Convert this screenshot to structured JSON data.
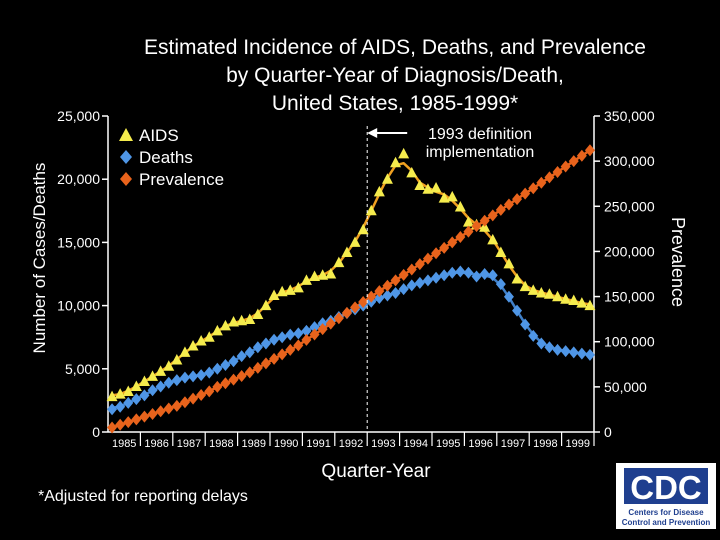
{
  "chart_data": {
    "type": "line",
    "title": [
      "Estimated Incidence of AIDS, Deaths, and Prevalence",
      "by Quarter-Year of Diagnosis/Death,",
      "United States, 1985-1999*"
    ],
    "xlabel": "Quarter-Year",
    "ylabel_left": "Number of Cases/Deaths",
    "ylabel_right": "Prevalence",
    "x_ticks": [
      "1985",
      "1986",
      "1987",
      "1988",
      "1989",
      "1990",
      "1991",
      "1992",
      "1993",
      "1994",
      "1995",
      "1996",
      "1997",
      "1998",
      "1999"
    ],
    "ylim_left": [
      0,
      25000
    ],
    "yticks_left": [
      "0",
      "5,000",
      "10,000",
      "15,000",
      "20,000",
      "25,000"
    ],
    "ylim_right": [
      0,
      350000
    ],
    "yticks_right": [
      "0",
      "50,000",
      "100,000",
      "150,000",
      "200,000",
      "250,000",
      "300,000",
      "350,000"
    ],
    "legend_placement": "top-left",
    "annotation": {
      "text": [
        "1993 definition",
        "implementation"
      ],
      "x_quarter": "1993 Q1"
    },
    "footnote": "*Adjusted for reporting delays",
    "series": [
      {
        "name": "AIDS",
        "axis": "left",
        "marker": "triangle",
        "color": "#f5ec4d",
        "line_color": "#f0a020",
        "values": [
          2800,
          3000,
          3200,
          3600,
          4000,
          4400,
          4800,
          5200,
          5700,
          6300,
          6800,
          7200,
          7500,
          8000,
          8400,
          8700,
          8800,
          8900,
          9300,
          10000,
          10800,
          11100,
          11200,
          11400,
          12000,
          12300,
          12400,
          12500,
          13400,
          14200,
          15000,
          16000,
          17500,
          19000,
          20000,
          21300,
          22000,
          20500,
          19500,
          19200,
          19300,
          18500,
          18600,
          17800,
          16600,
          16400,
          16200,
          15200,
          14200,
          13300,
          12100,
          11500,
          11200,
          11000,
          10900,
          10700,
          10500,
          10400,
          10200,
          10000
        ]
      },
      {
        "name": "Deaths",
        "axis": "left",
        "marker": "diamond",
        "color": "#4f96e6",
        "line_color": "#3f7fc8",
        "values": [
          1800,
          2000,
          2300,
          2600,
          2900,
          3300,
          3600,
          3900,
          4100,
          4300,
          4400,
          4500,
          4700,
          5000,
          5300,
          5600,
          6000,
          6300,
          6700,
          7000,
          7300,
          7500,
          7700,
          7800,
          8000,
          8300,
          8600,
          8800,
          9100,
          9400,
          9700,
          10000,
          10300,
          10600,
          10800,
          11000,
          11300,
          11600,
          11800,
          12000,
          12200,
          12400,
          12600,
          12700,
          12600,
          12300,
          12500,
          12400,
          11700,
          10700,
          9600,
          8500,
          7600,
          7000,
          6700,
          6500,
          6400,
          6300,
          6200,
          6100
        ]
      },
      {
        "name": "Prevalence",
        "axis": "right",
        "marker": "diamond",
        "color": "#e8631c",
        "line_color": "#e8631c",
        "values": [
          5000,
          8000,
          11000,
          14000,
          17000,
          20000,
          23000,
          26000,
          29000,
          33000,
          37000,
          41000,
          45000,
          50000,
          54000,
          58000,
          62000,
          66000,
          71000,
          76000,
          81000,
          86000,
          91000,
          96000,
          102000,
          108000,
          114000,
          120000,
          126000,
          132000,
          138000,
          144000,
          150000,
          156000,
          162000,
          168000,
          174000,
          180000,
          186000,
          192000,
          198000,
          204000,
          210000,
          216000,
          222000,
          228000,
          234000,
          240000,
          246000,
          252000,
          258000,
          264000,
          270000,
          276000,
          282000,
          288000,
          294000,
          300000,
          306000,
          312000
        ]
      }
    ]
  },
  "logo": {
    "letters": "CDC",
    "lines": [
      "Centers for Disease",
      "Control and Prevention"
    ]
  }
}
